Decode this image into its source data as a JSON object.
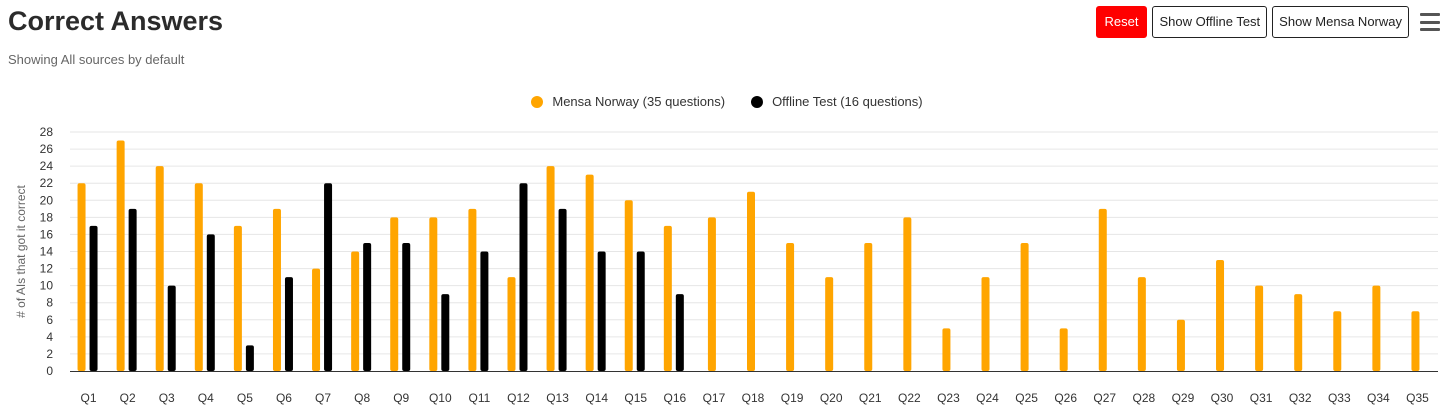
{
  "header": {
    "title": "Correct Answers",
    "subtitle": "Showing All sources by default"
  },
  "toolbar": {
    "reset_label": "Reset",
    "offline_label": "Show Offline Test",
    "mensa_label": "Show Mensa Norway",
    "menu_icon": "hamburger-menu-icon"
  },
  "colors": {
    "mensa": "#FFA500",
    "offline": "#000000",
    "reset": "#FF0000",
    "grid": "#e6e6e6"
  },
  "chart_data": {
    "type": "bar",
    "title": "Correct Answers",
    "subtitle": "Showing All sources by default",
    "xlabel": "",
    "ylabel": "# of AIs that got it correct",
    "ylim": [
      0,
      28
    ],
    "yticks": [
      0,
      2,
      4,
      6,
      8,
      10,
      12,
      14,
      16,
      18,
      20,
      22,
      24,
      26,
      28
    ],
    "grid": true,
    "legend_position": "top-center",
    "categories": [
      "Q1",
      "Q2",
      "Q3",
      "Q4",
      "Q5",
      "Q6",
      "Q7",
      "Q8",
      "Q9",
      "Q10",
      "Q11",
      "Q12",
      "Q13",
      "Q14",
      "Q15",
      "Q16",
      "Q17",
      "Q18",
      "Q19",
      "Q20",
      "Q21",
      "Q22",
      "Q23",
      "Q24",
      "Q25",
      "Q26",
      "Q27",
      "Q28",
      "Q29",
      "Q30",
      "Q31",
      "Q32",
      "Q33",
      "Q34",
      "Q35"
    ],
    "series": [
      {
        "name": "Mensa Norway (35 questions)",
        "color": "#FFA500",
        "values": [
          22,
          27,
          24,
          22,
          17,
          19,
          12,
          14,
          18,
          18,
          19,
          11,
          24,
          23,
          20,
          17,
          18,
          21,
          15,
          11,
          15,
          18,
          5,
          11,
          15,
          5,
          19,
          11,
          6,
          13,
          10,
          9,
          7,
          10,
          7
        ]
      },
      {
        "name": "Offline Test (16 questions)",
        "color": "#000000",
        "values": [
          17,
          19,
          10,
          16,
          3,
          11,
          22,
          15,
          15,
          9,
          14,
          22,
          19,
          14,
          14,
          9,
          null,
          null,
          null,
          null,
          null,
          null,
          null,
          null,
          null,
          null,
          null,
          null,
          null,
          null,
          null,
          null,
          null,
          null,
          null
        ]
      }
    ]
  }
}
